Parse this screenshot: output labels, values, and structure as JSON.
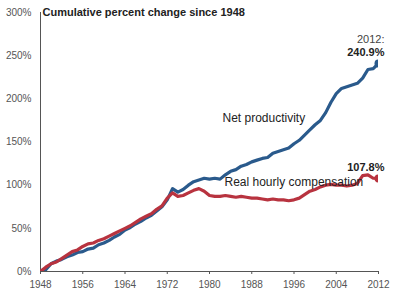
{
  "chart_data": {
    "type": "line",
    "title": "Cumulative percent change since 1948",
    "annotations": [
      "2012:"
    ],
    "x": [
      1948,
      1949,
      1950,
      1951,
      1952,
      1953,
      1954,
      1955,
      1956,
      1957,
      1958,
      1959,
      1960,
      1961,
      1962,
      1963,
      1964,
      1965,
      1966,
      1967,
      1968,
      1969,
      1970,
      1971,
      1972,
      1973,
      1974,
      1975,
      1976,
      1977,
      1978,
      1979,
      1980,
      1981,
      1982,
      1983,
      1984,
      1985,
      1986,
      1987,
      1988,
      1989,
      1990,
      1991,
      1992,
      1993,
      1994,
      1995,
      1996,
      1997,
      1998,
      1999,
      2000,
      2001,
      2002,
      2003,
      2004,
      2005,
      2006,
      2007,
      2008,
      2009,
      2010,
      2011,
      2012
    ],
    "series": [
      {
        "name": "Net productivity",
        "color": "#2a5a8c",
        "values": [
          0,
          2,
          9,
          12,
          14,
          17,
          19,
          22,
          23,
          26,
          27,
          31,
          33,
          36,
          40,
          43,
          48,
          51,
          55,
          58,
          62,
          65,
          70,
          75,
          83,
          96,
          92,
          95,
          100,
          104,
          106,
          108,
          107,
          108,
          107,
          112,
          116,
          118,
          122,
          124,
          127,
          129,
          131,
          132,
          137,
          139,
          141,
          143,
          148,
          152,
          158,
          164,
          170,
          175,
          184,
          196,
          206,
          212,
          214,
          216,
          218,
          224,
          234,
          235,
          240.9
        ],
        "value_labels": [
          null,
          null,
          null,
          null,
          null,
          null,
          null,
          null,
          null,
          null,
          null,
          null,
          null,
          null,
          null,
          null,
          null,
          null,
          null,
          null,
          null,
          null,
          null,
          null,
          null,
          null,
          null,
          null,
          null,
          null,
          null,
          null,
          null,
          null,
          null,
          null,
          null,
          null,
          null,
          null,
          null,
          null,
          null,
          null,
          null,
          null,
          null,
          null,
          null,
          null,
          null,
          null,
          null,
          null,
          null,
          null,
          null,
          null,
          null,
          null,
          null,
          null,
          null,
          null,
          "240.9%"
        ]
      },
      {
        "name": "Real hourly compensation",
        "color": "#b8333f",
        "values": [
          0,
          5,
          9,
          11,
          15,
          19,
          23,
          25,
          29,
          32,
          33,
          36,
          38,
          41,
          44,
          47,
          50,
          53,
          57,
          61,
          64,
          67,
          72,
          76,
          85,
          91,
          87,
          88,
          91,
          94,
          96,
          93,
          88,
          87,
          87,
          88,
          87,
          86,
          87,
          86,
          85,
          85,
          84,
          83,
          84,
          83,
          83,
          82,
          83,
          85,
          89,
          93,
          95,
          98,
          100,
          101,
          100,
          100,
          99,
          100,
          102,
          111,
          112,
          108,
          107.8
        ],
        "value_labels": [
          null,
          null,
          null,
          null,
          null,
          null,
          null,
          null,
          null,
          null,
          null,
          null,
          null,
          null,
          null,
          null,
          null,
          null,
          null,
          null,
          null,
          null,
          null,
          null,
          null,
          null,
          null,
          null,
          null,
          null,
          null,
          null,
          null,
          null,
          null,
          null,
          null,
          null,
          null,
          null,
          null,
          null,
          null,
          null,
          null,
          null,
          null,
          null,
          null,
          null,
          null,
          null,
          null,
          null,
          null,
          null,
          null,
          null,
          null,
          null,
          null,
          null,
          null,
          null,
          "107.8%"
        ]
      }
    ],
    "xlim": [
      1948,
      2012
    ],
    "xticks": [
      1948,
      1956,
      1964,
      1972,
      1980,
      1988,
      1996,
      2004,
      2012
    ],
    "ylim": [
      0,
      300
    ],
    "yticks": [
      {
        "value": 0,
        "label": "0%"
      },
      {
        "value": 50,
        "label": "50%"
      },
      {
        "value": 100,
        "label": "100%"
      },
      {
        "value": 150,
        "label": "150%"
      },
      {
        "value": 200,
        "label": "200%"
      },
      {
        "value": 250,
        "label": "250%"
      },
      {
        "value": 300,
        "label": "300%"
      }
    ],
    "grid": false
  }
}
